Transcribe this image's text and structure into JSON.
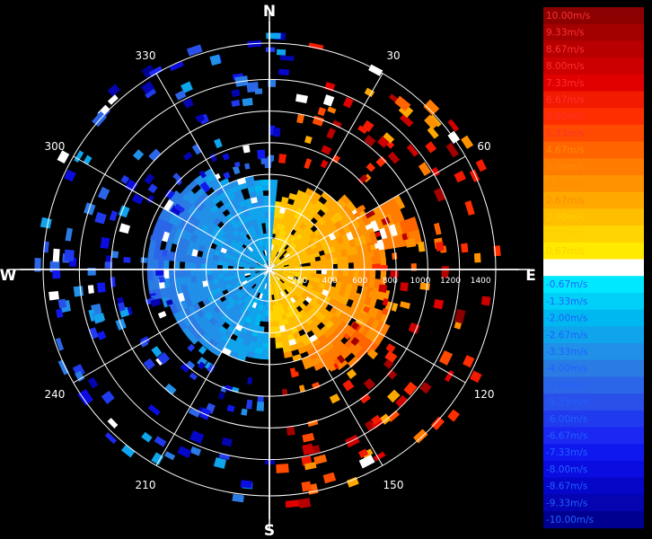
{
  "chart_data": {
    "type": "polar-radar",
    "compass": {
      "north": "N",
      "south": "S",
      "east": "E",
      "west": "W"
    },
    "bearing_labels": [
      "30",
      "60",
      "120",
      "150",
      "210",
      "240",
      "300",
      "330"
    ],
    "range_labels": [
      "200",
      "400",
      "600",
      "800",
      "1000",
      "1200",
      "1400"
    ],
    "range_max": 1500,
    "velocity_range": [
      -10.0,
      10.0
    ],
    "scale_labels": [
      "10.00m/s",
      "9.33m/s",
      "8.67m/s",
      "8.00m/s",
      "7.33m/s",
      "6.67m/s",
      "6.00m/s",
      "5.33m/s",
      "4.67m/s",
      "4.00m/s",
      "3.33m/s",
      "2.67m/s",
      "2.00m/s",
      "1.33m/s",
      "0.67m/s",
      "0.00m/s",
      "-0.67m/s",
      "-1.33m/s",
      "-2.00m/s",
      "-2.67m/s",
      "-3.33m/s",
      "-4.00m/s",
      "-4.67m/s",
      "-5.33m/s",
      "-6.00m/s",
      "-6.67m/s",
      "-7.33m/s",
      "-8.00m/s",
      "-8.67m/s",
      "-9.33m/s",
      "-10.00m/s"
    ],
    "scale_colors": [
      "#8b0000",
      "#a30000",
      "#b80000",
      "#cc0000",
      "#e00000",
      "#f21a00",
      "#ff2e00",
      "#ff4a00",
      "#ff6400",
      "#ff7c00",
      "#ff9200",
      "#ffa800",
      "#ffbe00",
      "#ffd400",
      "#ffea00",
      "#ffffff",
      "#00e8ff",
      "#00d0f8",
      "#00b8f0",
      "#10a4ec",
      "#2090e8",
      "#2a7ce4",
      "#2c66e8",
      "#2a50ea",
      "#203aee",
      "#1a28f2",
      "#1018f0",
      "#0a0ce0",
      "#0606c8",
      "#0404b0",
      "#000090"
    ],
    "scale_text_colors": {
      "positive_high": "#ff3030",
      "positive_mid": "#ff8a00",
      "positive_low": "#ffd000",
      "zero": "#ffffff",
      "negative": "#2060ff"
    },
    "grid": true
  }
}
